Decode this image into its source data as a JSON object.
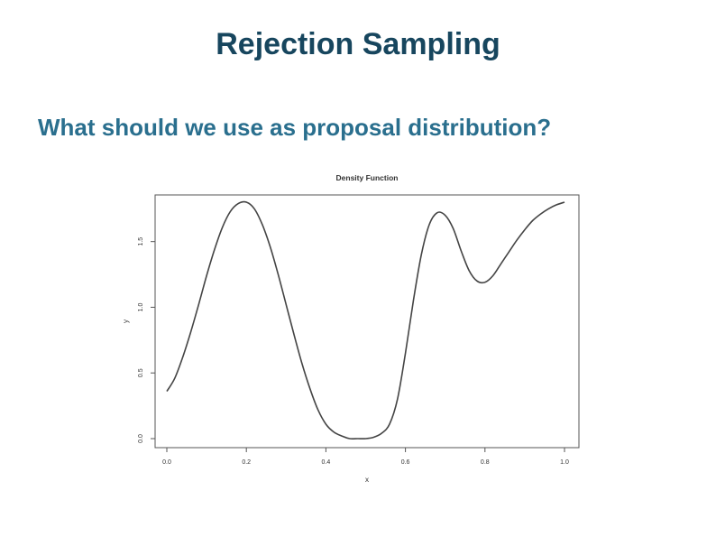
{
  "slide": {
    "title": "Rejection Sampling",
    "subtitle": "What should we use as proposal distribution?"
  },
  "chart_data": {
    "type": "line",
    "title": "Density Function",
    "xlabel": "x",
    "ylabel": "y",
    "xlim": [
      0.0,
      1.0
    ],
    "ylim": [
      0.0,
      1.8
    ],
    "xticks": [
      "0.0",
      "0.2",
      "0.4",
      "0.6",
      "0.8",
      "1.0"
    ],
    "yticks": [
      "0.0",
      "0.5",
      "1.0",
      "1.5"
    ],
    "grid": false,
    "series": [
      {
        "color": "#444444",
        "x": [
          0.0,
          0.02,
          0.04,
          0.06,
          0.08,
          0.1,
          0.12,
          0.14,
          0.16,
          0.18,
          0.2,
          0.22,
          0.24,
          0.26,
          0.28,
          0.3,
          0.32,
          0.34,
          0.36,
          0.38,
          0.4,
          0.42,
          0.44,
          0.46,
          0.48,
          0.5,
          0.52,
          0.54,
          0.56,
          0.58,
          0.6,
          0.62,
          0.64,
          0.66,
          0.68,
          0.7,
          0.72,
          0.74,
          0.76,
          0.78,
          0.8,
          0.82,
          0.84,
          0.86,
          0.88,
          0.9,
          0.92,
          0.94,
          0.96,
          0.98,
          1.0
        ],
        "y": [
          0.36,
          0.46,
          0.62,
          0.81,
          1.02,
          1.24,
          1.44,
          1.61,
          1.73,
          1.79,
          1.8,
          1.75,
          1.63,
          1.46,
          1.25,
          1.02,
          0.79,
          0.57,
          0.38,
          0.22,
          0.11,
          0.05,
          0.02,
          0.0,
          0.0,
          0.0,
          0.01,
          0.04,
          0.11,
          0.3,
          0.65,
          1.05,
          1.4,
          1.63,
          1.72,
          1.7,
          1.6,
          1.43,
          1.28,
          1.2,
          1.19,
          1.24,
          1.33,
          1.42,
          1.51,
          1.59,
          1.66,
          1.71,
          1.75,
          1.78,
          1.8
        ]
      }
    ]
  }
}
